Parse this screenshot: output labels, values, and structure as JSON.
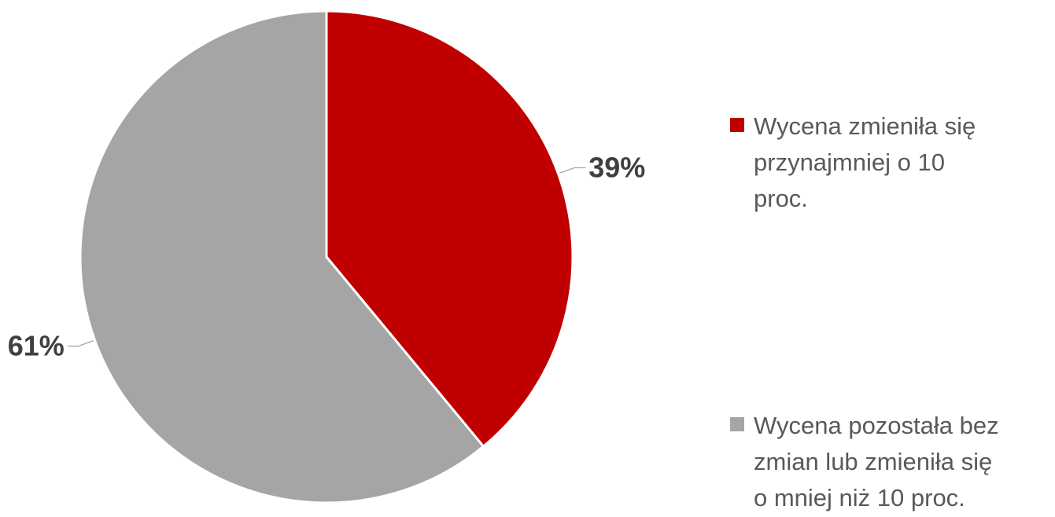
{
  "chart_data": {
    "type": "pie",
    "title": "",
    "start_angle_deg": 0,
    "direction": "clockwise",
    "slices": [
      {
        "name": "Wycena zmieniła się przynajmniej o 10 proc.",
        "legend_text": "Wycena zmieniła się\nprzynajmniej o 10\nproc.",
        "value": 39,
        "label": "39%",
        "color": "#c00000"
      },
      {
        "name": "Wycena pozostała bez zmian lub zmieniła się o mniej niż 10 proc.",
        "legend_text": "Wycena pozostała bez\nzmian lub zmieniła się\no mniej niż 10 proc.",
        "value": 61,
        "label": "61%",
        "color": "#a5a5a5"
      }
    ],
    "legend_position": "right"
  }
}
